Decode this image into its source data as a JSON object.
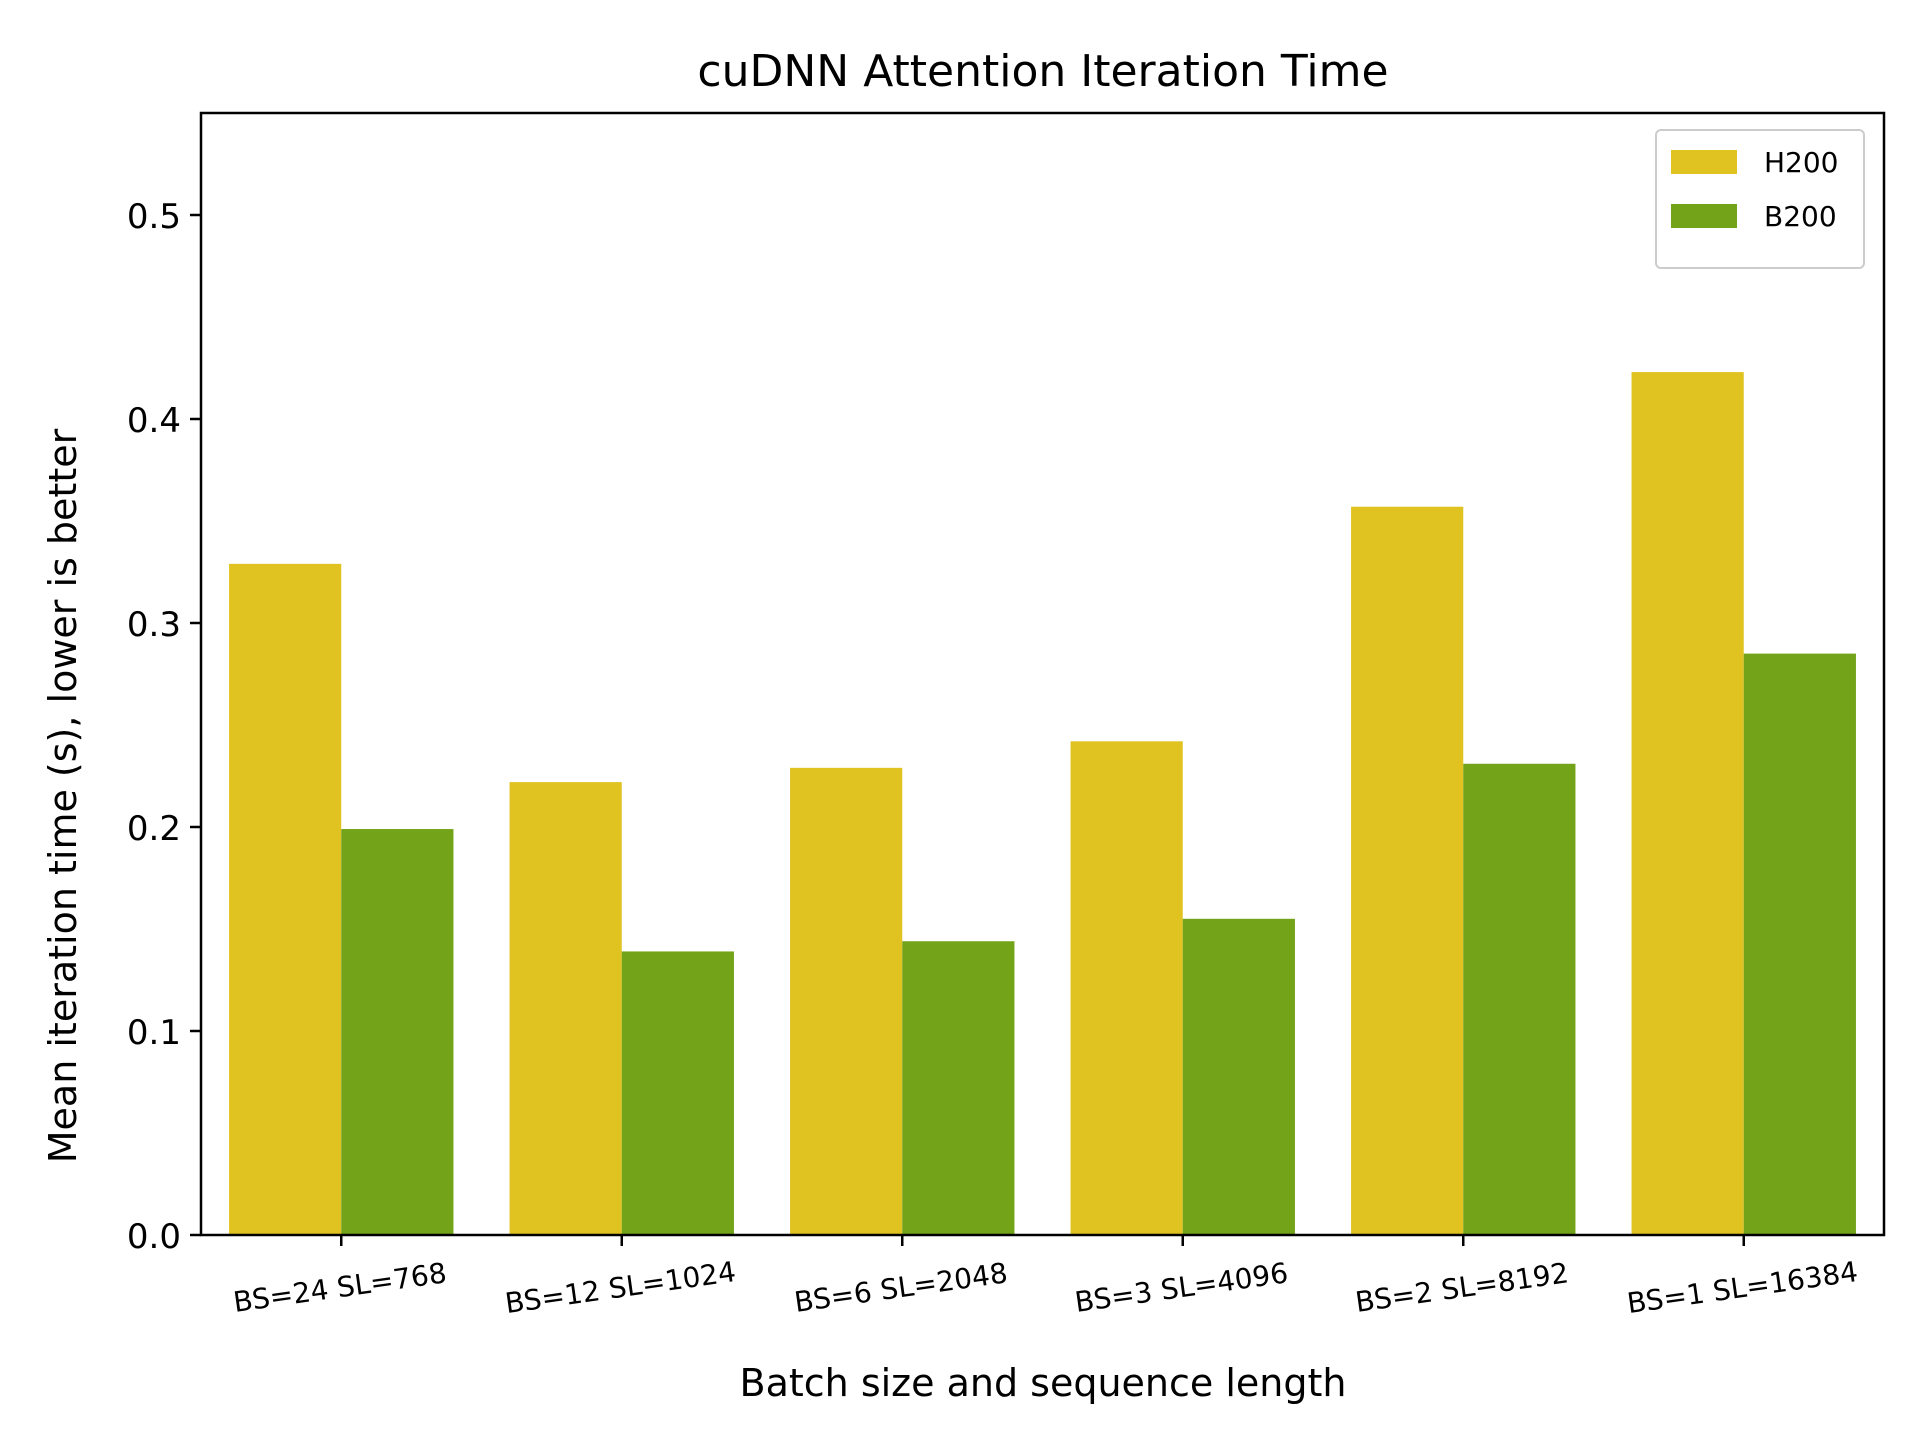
{
  "chart_data": {
    "type": "bar",
    "title": "cuDNN Attention Iteration Time",
    "xlabel": "Batch size and sequence length",
    "ylabel": "Mean iteration time (s), lower is better",
    "categories": [
      "BS=24 SL=768",
      "BS=12 SL=1024",
      "BS=6 SL=2048",
      "BS=3 SL=4096",
      "BS=2 SL=8192",
      "BS=1 SL=16384"
    ],
    "series": [
      {
        "name": "H200",
        "color": "#e0c320",
        "values": [
          0.329,
          0.222,
          0.229,
          0.242,
          0.357,
          0.423
        ]
      },
      {
        "name": "B200",
        "color": "#72a318",
        "values": [
          0.199,
          0.139,
          0.144,
          0.155,
          0.231,
          0.285
        ]
      }
    ],
    "ylim": [
      0,
      0.55
    ],
    "yticks": [
      "0.0",
      "0.1",
      "0.2",
      "0.3",
      "0.4",
      "0.5"
    ],
    "grid": false,
    "legend_position": "top-right"
  }
}
